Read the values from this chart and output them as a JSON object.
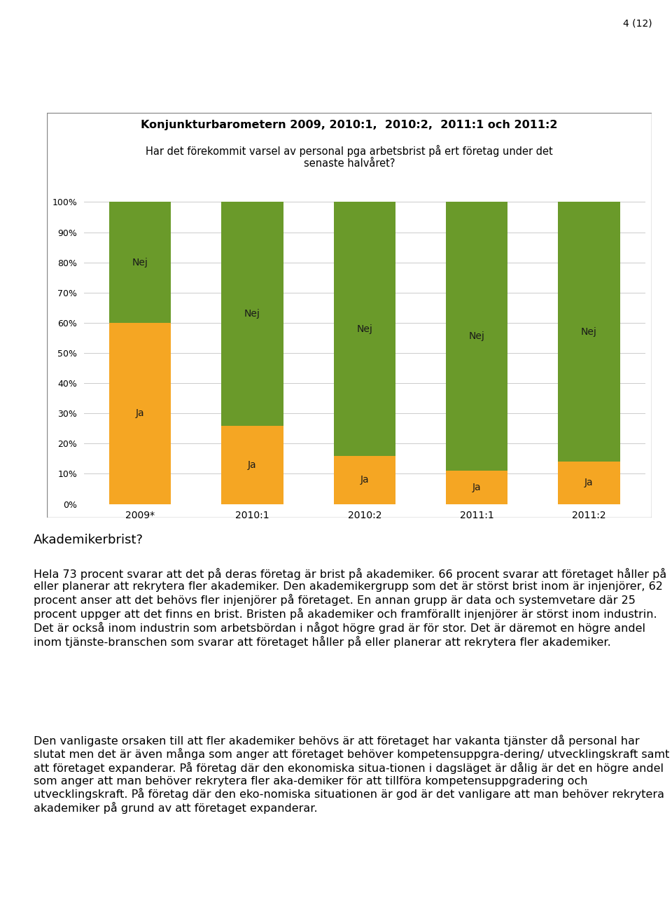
{
  "title_line1": "Konjunkturbarometern 2009, 2010:1,  2010:2,  2011:1 och 2011:2",
  "title_line2": "Har det förekommit varsel av personal pga arbetsbrist på ert företag under det\nsenaste halvåret?",
  "categories": [
    "2009*",
    "2010:1",
    "2010:2",
    "2011:1",
    "2011:2"
  ],
  "ja_values": [
    60,
    26,
    16,
    11,
    14
  ],
  "nej_values": [
    40,
    74,
    84,
    89,
    86
  ],
  "ja_color": "#F5A623",
  "nej_color": "#6A9A2A",
  "ja_label": "Ja",
  "nej_label": "Nej",
  "ylim": [
    0,
    100
  ],
  "yticks": [
    0,
    10,
    20,
    30,
    40,
    50,
    60,
    70,
    80,
    90,
    100
  ],
  "ytick_labels": [
    "0%",
    "10%",
    "20%",
    "30%",
    "40%",
    "50%",
    "60%",
    "70%",
    "80%",
    "90%",
    "100%"
  ],
  "page_label": "4 (12)",
  "heading": "Akademikerbrist?",
  "para1": "Hela 73 procent svarar att det på deras företag är brist på akademiker. 66 procent svarar att företaget håller på eller planerar att rekrytera fler akademiker. Den akademikergrupp som det är störst brist inom är injenjörer, 62 procent anser att det behövs fler injenjörer på företaget. En annan grupp är data och systemvetare där 25 procent uppger att det finns en brist. Bristen på akademiker och framförallt injenjörer är störst inom industrin. Det är också inom industrin som arbetsbördan i något högre grad är för stor. Det är däremot en högre andel inom tjänste-branschen som svarar att företaget håller på eller planerar att rekrytera fler akademiker.",
  "para2": "Den vanligaste orsaken till att fler akademiker behövs är att företaget har vakanta tjänster då personal har slutat men det är även många som anger att företaget behöver kompetensuppgra-dering/ utvecklingskraft samt att företaget expanderar. På företag där den ekonomiska situa-tionen i dagsläget är dålig är det en högre andel som anger att man behöver rekrytera fler aka-demiker för att tillföra kompetensuppgradering och utvecklingskraft. På företag där den eko-nomiska situationen är god är det vanligare att man behöver rekrytera akademiker på grund av att företaget expanderar.",
  "chart_bg": "#FFFFFF",
  "grid_color": "#CCCCCC",
  "bar_width": 0.55,
  "title_fontsize": 11.5,
  "subtitle_fontsize": 10.5,
  "label_fontsize": 10,
  "tick_fontsize": 9,
  "body_fontsize": 11.5,
  "heading_fontsize": 13
}
